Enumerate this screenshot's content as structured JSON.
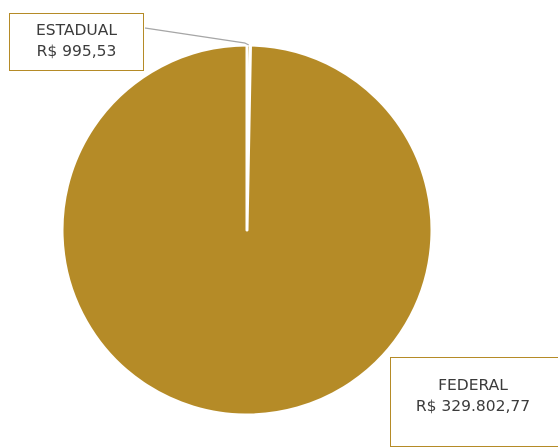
{
  "chart_data": {
    "type": "pie",
    "title": "",
    "series": [
      {
        "values": [
          995.53,
          329802.77
        ]
      }
    ],
    "categories": [
      "ESTADUAL",
      "FEDERAL"
    ],
    "slices": [
      {
        "label": "ESTADUAL",
        "value": 995.53,
        "value_text": "R$ 995,53",
        "color": "#b58b27"
      },
      {
        "label": "FEDERAL",
        "value": 329802.77,
        "value_text": "R$ 329.802,77",
        "color": "#b58b27"
      }
    ],
    "slice_border_color": "#ffffff",
    "leader_line_color": "#a6a6a6",
    "label_border_color": "#b58b27",
    "legend": "none",
    "grid": false
  }
}
